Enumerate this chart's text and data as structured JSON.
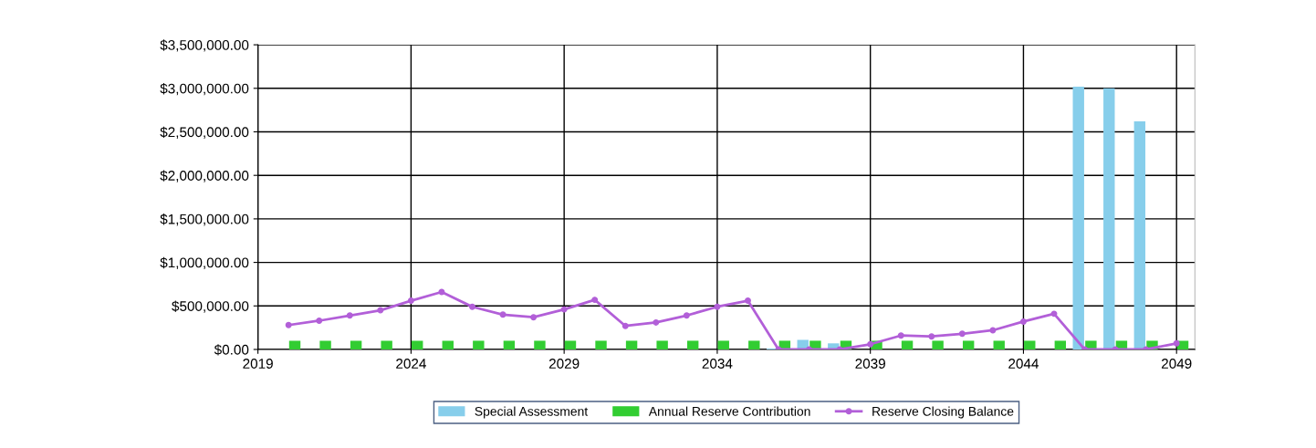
{
  "chart_data": {
    "type": "bar",
    "x": [
      2020,
      2021,
      2022,
      2023,
      2024,
      2025,
      2026,
      2027,
      2028,
      2029,
      2030,
      2031,
      2032,
      2033,
      2034,
      2035,
      2036,
      2037,
      2038,
      2039,
      2040,
      2041,
      2042,
      2043,
      2044,
      2045,
      2046,
      2047,
      2048,
      2049
    ],
    "series": [
      {
        "name": "Special Assessment",
        "color": "#87ceeb",
        "values": [
          0,
          0,
          0,
          0,
          0,
          0,
          0,
          0,
          0,
          0,
          0,
          0,
          0,
          0,
          0,
          0,
          10000,
          110000,
          70000,
          0,
          0,
          0,
          0,
          0,
          0,
          0,
          3020000,
          3000000,
          2620000,
          0
        ]
      },
      {
        "name": "Annual Reserve Contribution",
        "color": "#32cd32",
        "values": [
          100000,
          100000,
          100000,
          100000,
          100000,
          100000,
          100000,
          100000,
          100000,
          100000,
          100000,
          100000,
          100000,
          100000,
          100000,
          100000,
          100000,
          100000,
          100000,
          100000,
          100000,
          100000,
          100000,
          100000,
          100000,
          100000,
          100000,
          100000,
          100000,
          100000
        ]
      },
      {
        "name": "Reserve Closing Balance",
        "type": "line",
        "color": "#b25fd8",
        "marker": "circle",
        "values": [
          280000,
          330000,
          390000,
          450000,
          560000,
          660000,
          490000,
          400000,
          370000,
          460000,
          570000,
          270000,
          310000,
          390000,
          490000,
          560000,
          0,
          0,
          0,
          60000,
          160000,
          150000,
          180000,
          220000,
          320000,
          410000,
          0,
          0,
          0,
          70000
        ]
      }
    ],
    "xlim": [
      2019,
      2049.6
    ],
    "xticks": [
      2019,
      2024,
      2029,
      2034,
      2039,
      2044,
      2049
    ],
    "ylim": [
      0,
      3500000
    ],
    "yticks": [
      {
        "value": 0,
        "label": "$0.00"
      },
      {
        "value": 500000,
        "label": "$500,000.00"
      },
      {
        "value": 1000000,
        "label": "$1,000,000.00"
      },
      {
        "value": 1500000,
        "label": "$1,500,000.00"
      },
      {
        "value": 2000000,
        "label": "$2,000,000.00"
      },
      {
        "value": 2500000,
        "label": "$2,500,000.00"
      },
      {
        "value": 3000000,
        "label": "$3,000,000.00"
      },
      {
        "value": 3500000,
        "label": "$3,500,000.00"
      }
    ],
    "grid": true,
    "legend": "bottom"
  }
}
